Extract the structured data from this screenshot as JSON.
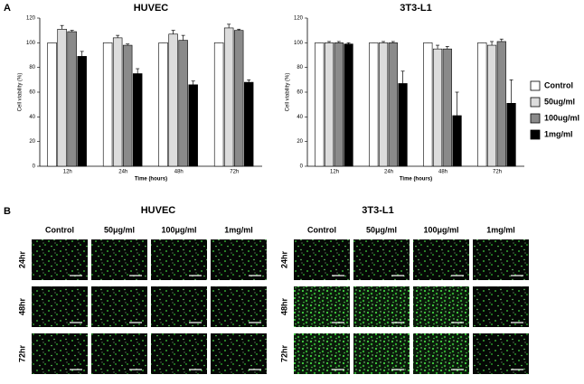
{
  "panel_labels": [
    "A",
    "B"
  ],
  "chart_data": [
    {
      "type": "bar",
      "title": "HUVEC",
      "xlabel": "Time (hours)",
      "ylabel": "Cell viability (%)",
      "categories": [
        "12h",
        "24h",
        "48h",
        "72h"
      ],
      "ylim": [
        0,
        120
      ],
      "yticks": [
        0,
        20,
        40,
        60,
        80,
        100,
        120
      ],
      "series": [
        {
          "color": "#ffffff",
          "values": [
            100,
            100,
            100,
            100
          ],
          "errors": [
            0,
            0,
            0,
            0
          ]
        },
        {
          "color": "#dcdcdc",
          "values": [
            111,
            104,
            107,
            112
          ],
          "errors": [
            3,
            2,
            3,
            3
          ]
        },
        {
          "color": "#8a8a8a",
          "values": [
            109,
            98,
            102,
            110
          ],
          "errors": [
            1,
            1,
            4,
            1
          ]
        },
        {
          "color": "#000000",
          "values": [
            89,
            75,
            66,
            68
          ],
          "errors": [
            4,
            4,
            3,
            2
          ]
        }
      ]
    },
    {
      "type": "bar",
      "title": "3T3-L1",
      "xlabel": "Time (hours)",
      "ylabel": "Cell viability (%)",
      "categories": [
        "12h",
        "24h",
        "48h",
        "72h"
      ],
      "ylim": [
        0,
        120
      ],
      "yticks": [
        0,
        20,
        40,
        60,
        80,
        100,
        120
      ],
      "legend": "right",
      "series": [
        {
          "name": "Control",
          "color": "#ffffff",
          "values": [
            100,
            100,
            100,
            100
          ],
          "errors": [
            0,
            0,
            0,
            0
          ]
        },
        {
          "name": "50ug/ml",
          "color": "#dcdcdc",
          "values": [
            100,
            100,
            95,
            98
          ],
          "errors": [
            1,
            1,
            3,
            3
          ]
        },
        {
          "name": "100ug/ml",
          "color": "#8a8a8a",
          "values": [
            100,
            100,
            95,
            101
          ],
          "errors": [
            1,
            1,
            2,
            2
          ]
        },
        {
          "name": "1mg/ml",
          "color": "#000000",
          "values": [
            99,
            67,
            41,
            51
          ],
          "errors": [
            1,
            10,
            19,
            19
          ]
        }
      ]
    }
  ],
  "micrographs": [
    {
      "title": "HUVEC",
      "columns": [
        "Control",
        "50μg/ml",
        "100μg/ml",
        "1mg/ml"
      ],
      "rows": [
        "24hr",
        "48hr",
        "72hr"
      ]
    },
    {
      "title": "3T3-L1",
      "columns": [
        "Control",
        "50μg/ml",
        "100μg/ml",
        "1mg/ml"
      ],
      "rows": [
        "24hr",
        "48hr",
        "72hr"
      ]
    }
  ]
}
